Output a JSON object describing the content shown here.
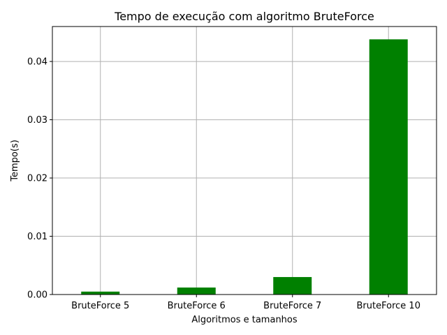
{
  "chart_data": {
    "type": "bar",
    "title": "Tempo de execução com algoritmo BruteForce",
    "xlabel": "Algoritmos e tamanhos",
    "ylabel": "Tempo(s)",
    "categories": [
      "BruteForce 5",
      "BruteForce 6",
      "BruteForce 7",
      "BruteForce 10"
    ],
    "values": [
      0.0005,
      0.0012,
      0.003,
      0.0438
    ],
    "ylim": [
      0,
      0.046
    ],
    "yticks": [
      0.0,
      0.01,
      0.02,
      0.03,
      0.04
    ],
    "ytick_labels": [
      "0.00",
      "0.01",
      "0.02",
      "0.03",
      "0.04"
    ],
    "grid": true,
    "bar_color": "#008000"
  }
}
